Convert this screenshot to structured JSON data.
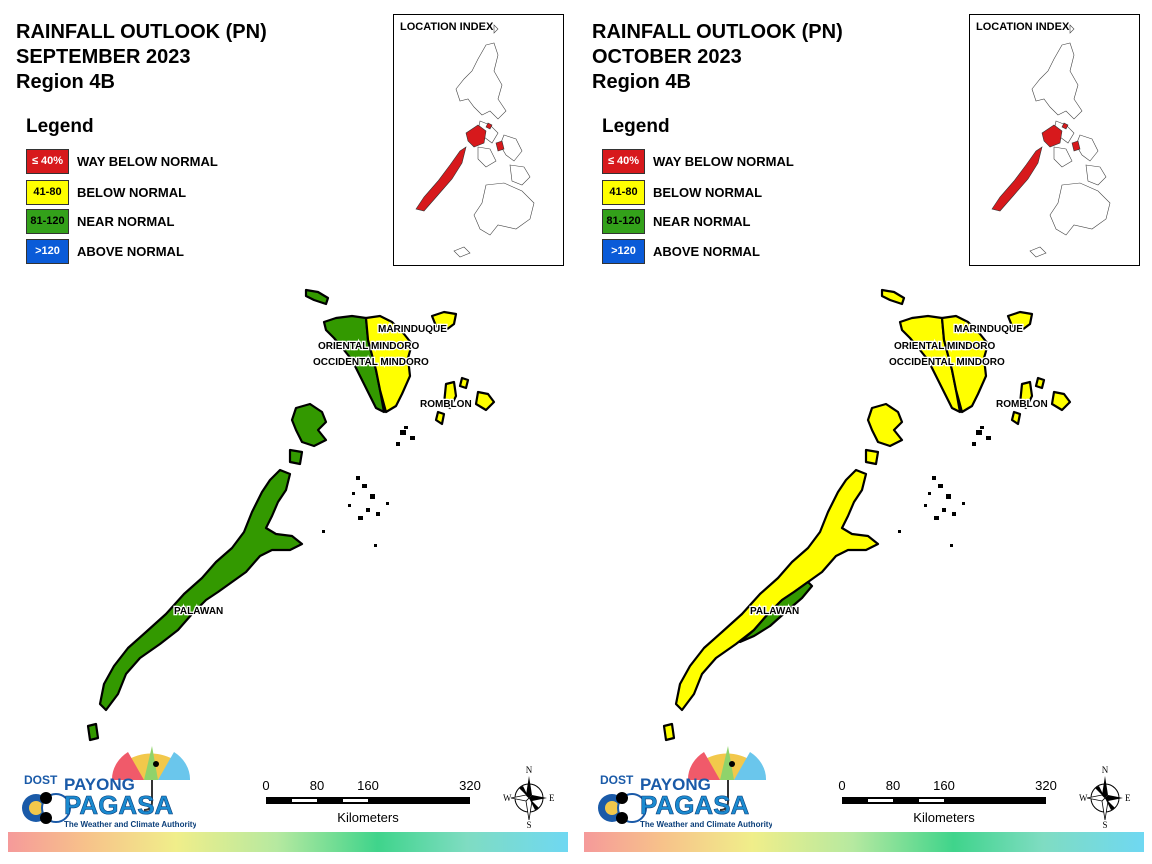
{
  "panels": [
    {
      "title_line1": "RAINFALL OUTLOOK (PN)",
      "title_line2": "SEPTEMBER 2023",
      "title_line3": "Region 4B",
      "legend_title": "Legend",
      "legend": [
        {
          "swatch": "≤ 40%",
          "label": "WAY BELOW NORMAL",
          "color": "#d7191c"
        },
        {
          "swatch": "41-80",
          "label": "BELOW NORMAL",
          "color": "#ffff00"
        },
        {
          "swatch": "81-120",
          "label": "NEAR NORMAL",
          "color": "#33a11a"
        },
        {
          "swatch": ">120",
          "label": "ABOVE NORMAL",
          "color": "#0a5bd8"
        }
      ],
      "location_index_label": "LOCATION INDEX",
      "provinces": {
        "marinduque": {
          "label": "MARINDUQUE",
          "category": "BELOW NORMAL",
          "color": "#ffff00"
        },
        "oriental_mindoro": {
          "label": "ORIENTAL MINDORO",
          "category": "BELOW NORMAL",
          "color": "#ffff00"
        },
        "occidental_mindoro": {
          "label": "OCCIDENTAL MINDORO",
          "category": "NEAR NORMAL",
          "color": "#339900"
        },
        "romblon": {
          "label": "ROMBLON",
          "category": "BELOW NORMAL",
          "color": "#ffff00"
        },
        "palawan": {
          "label": "PALAWAN",
          "category": "NEAR NORMAL",
          "color": "#339900"
        }
      },
      "scale": {
        "ticks": [
          "0",
          "80",
          "160",
          "320"
        ],
        "unit": "Kilometers"
      },
      "compass": {
        "n": "N",
        "e": "E",
        "s": "S",
        "w": "W"
      },
      "logo": {
        "dost": "DOST",
        "payong": "PAYONG",
        "pagasa": "PAGASA",
        "tagline": "The Weather and Climate Authority"
      }
    },
    {
      "title_line1": "RAINFALL OUTLOOK (PN)",
      "title_line2": "OCTOBER 2023",
      "title_line3": "Region 4B",
      "legend_title": "Legend",
      "legend": [
        {
          "swatch": "≤ 40%",
          "label": "WAY BELOW NORMAL",
          "color": "#d7191c"
        },
        {
          "swatch": "41-80",
          "label": "BELOW NORMAL",
          "color": "#ffff00"
        },
        {
          "swatch": "81-120",
          "label": "NEAR NORMAL",
          "color": "#33a11a"
        },
        {
          "swatch": ">120",
          "label": "ABOVE NORMAL",
          "color": "#0a5bd8"
        }
      ],
      "location_index_label": "LOCATION INDEX",
      "provinces": {
        "marinduque": {
          "label": "MARINDUQUE",
          "category": "BELOW NORMAL",
          "color": "#ffff00"
        },
        "oriental_mindoro": {
          "label": "ORIENTAL MINDORO",
          "category": "BELOW NORMAL",
          "color": "#ffff00"
        },
        "occidental_mindoro": {
          "label": "OCCIDENTAL MINDORO",
          "category": "BELOW NORMAL",
          "color": "#ffff00"
        },
        "romblon": {
          "label": "ROMBLON",
          "category": "BELOW NORMAL",
          "color": "#ffff00"
        },
        "palawan": {
          "label": "PALAWAN",
          "category": "BELOW NORMAL",
          "color": "#ffff00",
          "secondary_color": "#339900"
        }
      },
      "scale": {
        "ticks": [
          "0",
          "80",
          "160",
          "320"
        ],
        "unit": "Kilometers"
      },
      "compass": {
        "n": "N",
        "e": "E",
        "s": "S",
        "w": "W"
      },
      "logo": {
        "dost": "DOST",
        "payong": "PAYONG",
        "pagasa": "PAGASA",
        "tagline": "The Weather and Climate Authority"
      }
    }
  ]
}
